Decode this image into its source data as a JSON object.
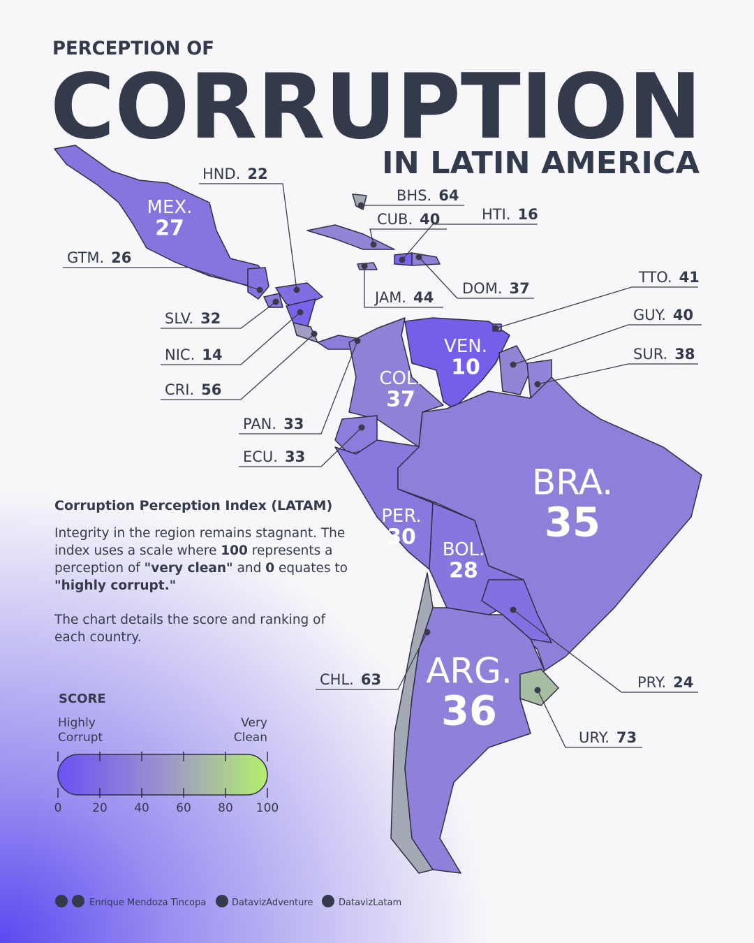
{
  "header": {
    "kicker": "PERCEPTION OF",
    "title": "CORRUPTION",
    "subtitle": "IN LATIN AMERICA"
  },
  "countries": [
    {
      "label": "MEX.",
      "score": 27
    },
    {
      "label": "GTM.",
      "score": 26
    },
    {
      "label": "HND.",
      "score": 22
    },
    {
      "label": "SLV.",
      "score": 32
    },
    {
      "label": "NIC.",
      "score": 14
    },
    {
      "label": "CRI.",
      "score": 56
    },
    {
      "label": "PAN.",
      "score": 33
    },
    {
      "label": "CUB.",
      "score": 40
    },
    {
      "label": "JAM.",
      "score": 44
    },
    {
      "label": "BHS.",
      "score": 64
    },
    {
      "label": "HTI.",
      "score": 16
    },
    {
      "label": "DOM.",
      "score": 37
    },
    {
      "label": "COL.",
      "score": 37
    },
    {
      "label": "VEN.",
      "score": 10
    },
    {
      "label": "TTO.",
      "score": 41
    },
    {
      "label": "GUY.",
      "score": 40
    },
    {
      "label": "SUR.",
      "score": 38
    },
    {
      "label": "ECU.",
      "score": 33
    },
    {
      "label": "PER.",
      "score": 30
    },
    {
      "label": "BOL.",
      "score": 28
    },
    {
      "label": "BRA.",
      "score": 35
    },
    {
      "label": "PRY.",
      "score": 24
    },
    {
      "label": "CHL.",
      "score": 63
    },
    {
      "label": "ARG.",
      "score": 36
    },
    {
      "label": "URY.",
      "score": 73
    }
  ],
  "info": {
    "heading": "Corruption Perception Index (LATAM)",
    "paragraph": [
      {
        "text": "Integrity in the region remains stagnant. The index uses a scale where ",
        "bold": false
      },
      {
        "text": "100",
        "bold": true
      },
      {
        "text": " represents a perception of ",
        "bold": false
      },
      {
        "text": "\"very clean\"",
        "bold": true
      },
      {
        "text": " and ",
        "bold": false
      },
      {
        "text": "0",
        "bold": true
      },
      {
        "text": " equates to ",
        "bold": false
      },
      {
        "text": "\"highly corrupt.\"",
        "bold": true
      }
    ],
    "note": "The chart details the score and ranking of each country."
  },
  "legend": {
    "title": "SCORE",
    "low_label": [
      "Highly",
      "Corrupt"
    ],
    "high_label": [
      "Very",
      "Clean"
    ],
    "range": [
      0,
      100
    ],
    "ticks": [
      0,
      20,
      40,
      60,
      80,
      100
    ],
    "colors": [
      "#6a52f2",
      "#9d92cf",
      "#b3f06c"
    ]
  },
  "footer": {
    "author": "Enrique Mendoza Tincopa",
    "handle1": "DatavizAdventure",
    "handle2": "DatavizLatam"
  }
}
